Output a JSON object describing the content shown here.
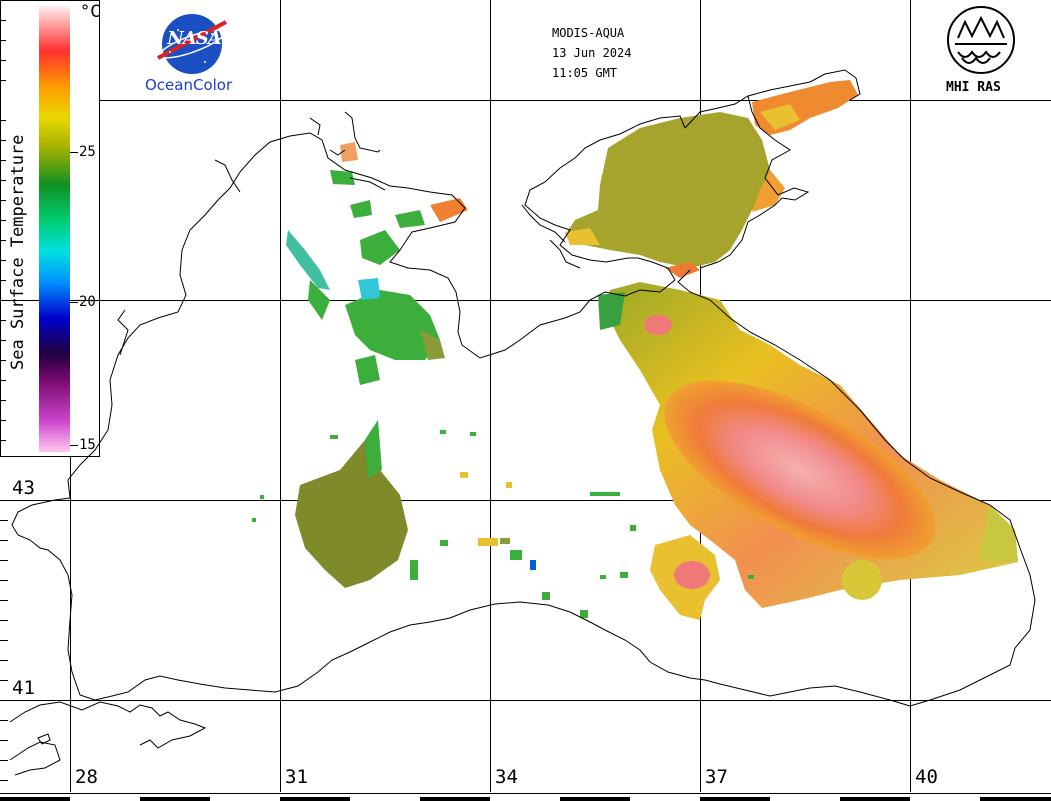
{
  "header": {
    "sensor": "MODIS-AQUA",
    "date": "13 Jun 2024",
    "time": "11:05 GMT"
  },
  "logos": {
    "nasa": "NASA",
    "oceancolor": "OceanColor",
    "mhi": "MHI RAS"
  },
  "colorbar": {
    "title": "Sea Surface Temperature",
    "unit": "°C",
    "ticks": [
      {
        "value": 25,
        "label": "25"
      },
      {
        "value": 20,
        "label": "20"
      },
      {
        "value": 15,
        "label": "15"
      }
    ],
    "range": [
      15,
      29
    ],
    "colors": [
      "#ffc8f0",
      "#cc44cc",
      "#7a0a70",
      "#200040",
      "#0000cc",
      "#0090ff",
      "#00e0e0",
      "#00cc70",
      "#109020",
      "#a0b000",
      "#e8d800",
      "#ff9a00",
      "#ff3030",
      "#fff0f0"
    ]
  },
  "axes": {
    "longitude_labels": [
      {
        "value": 28,
        "label": "28"
      },
      {
        "value": 31,
        "label": "31"
      },
      {
        "value": 34,
        "label": "34"
      },
      {
        "value": 37,
        "label": "37"
      },
      {
        "value": 40,
        "label": "40"
      }
    ],
    "latitude_labels": [
      {
        "value": 43,
        "label": "43"
      },
      {
        "value": 41,
        "label": "41"
      }
    ]
  },
  "colors": {
    "cold_green": "#3cae3c",
    "olive": "#8a9a2a",
    "warm_yellow": "#e8c820",
    "hot_orange": "#f07830",
    "peak_pink": "#f2a0a0"
  }
}
